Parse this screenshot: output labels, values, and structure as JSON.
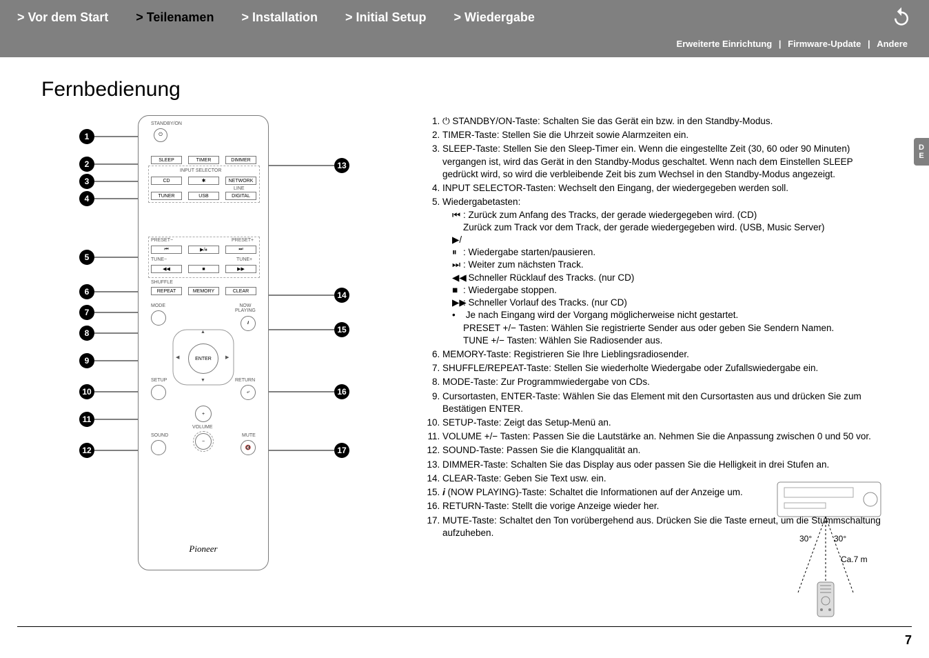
{
  "nav": {
    "items": [
      {
        "label": "Vor dem Start",
        "active": false
      },
      {
        "label": "Teilenamen",
        "active": true
      },
      {
        "label": "Installation",
        "active": false
      },
      {
        "label": "Initial Setup",
        "active": false
      },
      {
        "label": "Wiedergabe",
        "active": false
      }
    ],
    "sub": [
      "Erweiterte Einrichtung",
      "Firmware-Update",
      "Andere"
    ]
  },
  "heading": "Fernbedienung",
  "side_tab": [
    "D",
    "E"
  ],
  "page_number": "7",
  "remote": {
    "standby": "STANDBY/ON",
    "sleep": "SLEEP",
    "timer": "TIMER",
    "dimmer": "DIMMER",
    "input_sel": "INPUT SELECTOR",
    "cd": "CD",
    "bt": "✱",
    "network": "NETWORK",
    "tuner": "TUNER",
    "usb": "USB",
    "line": "LINE",
    "digital": "DIGITAL",
    "preset_m": "PRESET−",
    "preset_p": "PRESET+",
    "prev": "⏮",
    "play": "▶/⏸",
    "next": "⏭",
    "tune_m": "TUNE−",
    "tune_p": "TUNE+",
    "rew": "◀◀",
    "stop": "■",
    "fwd": "▶▶",
    "shuffle": "SHUFFLE",
    "repeat": "REPEAT",
    "memory": "MEMORY",
    "clear": "CLEAR",
    "mode": "MODE",
    "now": "NOW\nPLAYING",
    "info": "𝒊",
    "enter": "ENTER",
    "up": "▲",
    "down": "▼",
    "left": "◀",
    "right": "▶",
    "setup": "SETUP",
    "return": "RETURN",
    "ret": "⤶",
    "plus": "+",
    "minus": "−",
    "volume": "VOLUME",
    "sound": "SOUND",
    "mute": "MUTE",
    "mute_ico": "🔇",
    "brand": "Pioneer"
  },
  "labels_left": [
    "1",
    "2",
    "3",
    "4",
    "5",
    "6",
    "7",
    "8",
    "9",
    "10",
    "11",
    "12"
  ],
  "labels_right": [
    "13",
    "14",
    "15",
    "16",
    "17"
  ],
  "list": [
    {
      "n": "1",
      "t": "⏻ STANDBY/ON-Taste: Schalten Sie das Gerät ein bzw. in den Standby-Modus."
    },
    {
      "n": "2",
      "t": "TIMER-Taste: Stellen Sie die Uhrzeit sowie Alarmzeiten ein."
    },
    {
      "n": "3",
      "t": "SLEEP-Taste: Stellen Sie den Sleep-Timer ein. Wenn die eingestellte Zeit (30, 60 oder 90 Minuten) vergangen ist, wird das Gerät in den Standby-Modus geschaltet. Wenn nach dem Einstellen SLEEP gedrückt wird, so wird die verbleibende Zeit bis zum Wechsel in den Standby-Modus angezeigt."
    },
    {
      "n": "4",
      "t": "INPUT SELECTOR-Tasten: Wechselt den Eingang, der wiedergegeben werden soll."
    },
    {
      "n": "5",
      "t": "Wiedergabetasten:",
      "sub": [
        {
          "g": "⏮",
          "t": ": Zurück zum Anfang des Tracks, der gerade wiedergegeben wird. (CD)",
          "extra": "Zurück zum Track vor dem Track, der gerade wiedergegeben wird. (USB, Music Server)"
        },
        {
          "g": "▶/⏸",
          "t": ": Wiedergabe starten/pausieren."
        },
        {
          "g": "⏭",
          "t": ": Weiter zum nächsten Track."
        },
        {
          "g": "◀◀",
          "t": ": Schneller Rücklauf des Tracks. (nur CD)"
        },
        {
          "g": "■",
          "t": ": Wiedergabe stoppen."
        },
        {
          "g": "▶▶",
          "t": ": Schneller Vorlauf des Tracks. (nur CD)"
        },
        {
          "g": "•",
          "t": " Je nach Eingang wird der Vorgang möglicherweise nicht gestartet."
        },
        {
          "g": "",
          "t": "PRESET +/− Tasten: Wählen Sie registrierte Sender aus oder geben Sie Sendern Namen."
        },
        {
          "g": "",
          "t": "TUNE +/− Tasten: Wählen Sie Radiosender aus."
        }
      ]
    },
    {
      "n": "6",
      "t": "MEMORY-Taste: Registrieren Sie Ihre Lieblingsradiosender."
    },
    {
      "n": "7",
      "t": "SHUFFLE/REPEAT-Taste: Stellen Sie wiederholte Wiedergabe oder Zufallswiedergabe ein."
    },
    {
      "n": "8",
      "t": "MODE-Taste: Zur Programmwiedergabe von CDs."
    },
    {
      "n": "9",
      "t": "Cursortasten, ENTER-Taste: Wählen Sie das Element mit den Cursortasten aus und drücken Sie zum Bestätigen ENTER."
    },
    {
      "n": "10",
      "t": "SETUP-Taste: Zeigt das Setup-Menü an."
    },
    {
      "n": "11",
      "t": "VOLUME +/− Tasten: Passen Sie die Lautstärke an. Nehmen Sie die Anpassung zwischen 0 und 50 vor."
    },
    {
      "n": "12",
      "t": "SOUND-Taste: Passen Sie die Klangqualität an."
    },
    {
      "n": "13",
      "t": "DIMMER-Taste: Schalten Sie das Display aus oder passen Sie die Helligkeit in drei Stufen an."
    },
    {
      "n": "14",
      "t": "CLEAR-Taste: Geben Sie Text usw. ein."
    },
    {
      "n": "15",
      "t": "𝒊 (NOW PLAYING)-Taste: Schaltet die Informationen auf der Anzeige um."
    },
    {
      "n": "16",
      "t": "RETURN-Taste: Stellt die vorige Anzeige wieder her."
    },
    {
      "n": "17",
      "t": "MUTE-Taste: Schaltet den Ton vorübergehend aus. Drücken Sie die Taste erneut, um die Stummschaltung aufzuheben."
    }
  ],
  "device": {
    "angle_l": "30°",
    "angle_r": "30°",
    "dist": "Ca.7 m"
  }
}
